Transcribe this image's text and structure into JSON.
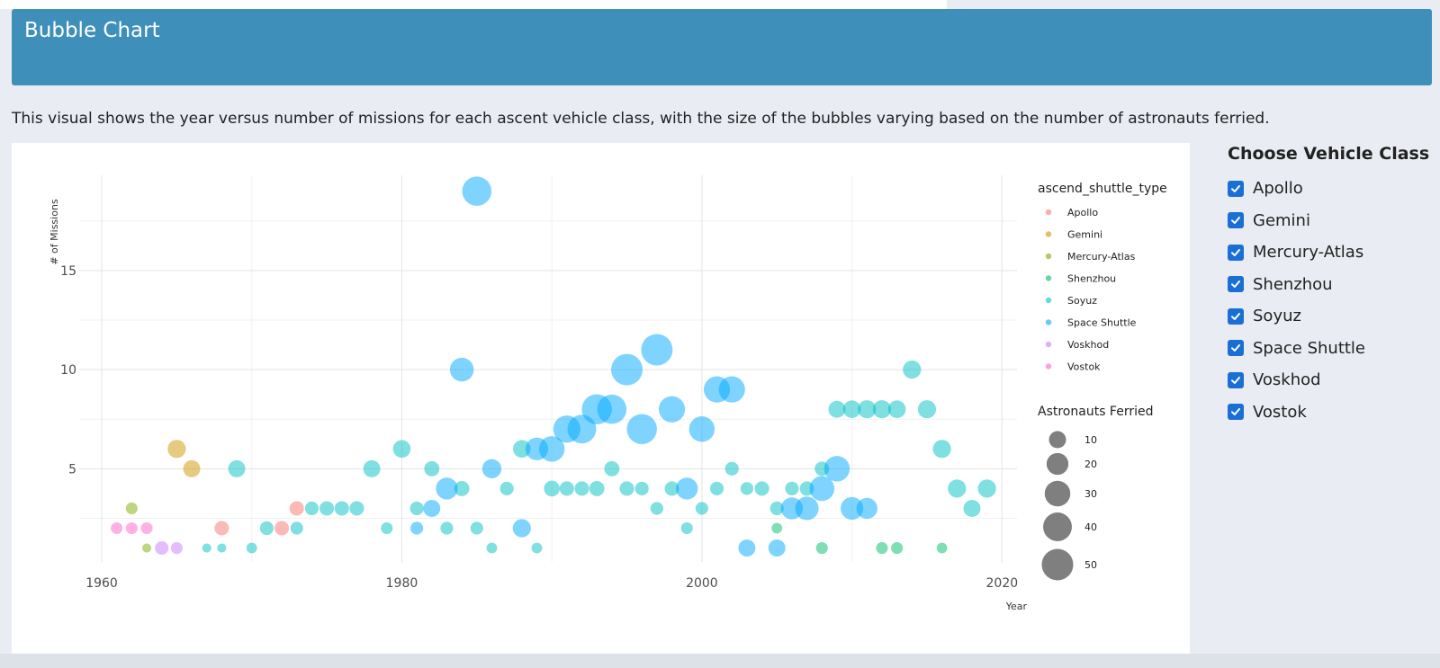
{
  "header": {
    "title": "Bubble Chart"
  },
  "description": "This visual shows the year versus number of missions for each ascent vehicle class, with the size of the bubbles varying based on the number of astronauts ferried.",
  "controls": {
    "title": "Choose Vehicle Class",
    "options": [
      {
        "label": "Apollo",
        "checked": true
      },
      {
        "label": "Gemini",
        "checked": true
      },
      {
        "label": "Mercury-Atlas",
        "checked": true
      },
      {
        "label": "Shenzhou",
        "checked": true
      },
      {
        "label": "Soyuz",
        "checked": true
      },
      {
        "label": "Space Shuttle",
        "checked": true
      },
      {
        "label": "Voskhod",
        "checked": true
      },
      {
        "label": "Vostok",
        "checked": true
      }
    ]
  },
  "chart_data": {
    "type": "scatter",
    "title": "",
    "xlabel": "Year",
    "ylabel": "# of Missions",
    "xlim": [
      1958.5,
      2021
    ],
    "ylim": [
      0.3,
      19.8
    ],
    "xticks": [
      1960,
      1980,
      2000,
      2020
    ],
    "yticks": [
      5,
      10,
      15
    ],
    "grid": true,
    "legend_color_title": "ascend_shuttle_type",
    "legend_size_title": "Astronauts Ferried",
    "size_legend": [
      10,
      20,
      30,
      40,
      50
    ],
    "series": [
      {
        "name": "Apollo",
        "color": "#f8766d",
        "points": [
          [
            1968,
            2,
            6
          ],
          [
            1972,
            2,
            6
          ],
          [
            1973,
            3,
            6
          ]
        ]
      },
      {
        "name": "Gemini",
        "color": "#cd9600",
        "points": [
          [
            1965,
            6,
            12
          ],
          [
            1966,
            5,
            10
          ]
        ]
      },
      {
        "name": "Mercury-Atlas",
        "color": "#7cae00",
        "points": [
          [
            1962,
            3,
            3
          ],
          [
            1963,
            1,
            1
          ]
        ]
      },
      {
        "name": "Shenzhou",
        "color": "#00be67",
        "points": [
          [
            2005,
            2,
            2
          ],
          [
            2008,
            1,
            3
          ],
          [
            2012,
            1,
            3
          ],
          [
            2013,
            1,
            3
          ],
          [
            2016,
            1,
            2
          ]
        ]
      },
      {
        "name": "Soyuz",
        "color": "#00bfc4",
        "points": [
          [
            1967,
            1,
            1
          ],
          [
            1968,
            1,
            1
          ],
          [
            1969,
            5,
            10
          ],
          [
            1970,
            1,
            2
          ],
          [
            1971,
            2,
            5
          ],
          [
            1973,
            2,
            4
          ],
          [
            1974,
            3,
            5
          ],
          [
            1975,
            3,
            6
          ],
          [
            1976,
            3,
            6
          ],
          [
            1977,
            3,
            6
          ],
          [
            1978,
            5,
            10
          ],
          [
            1979,
            2,
            3
          ],
          [
            1980,
            6,
            11
          ],
          [
            1981,
            3,
            5
          ],
          [
            1982,
            5,
            7
          ],
          [
            1983,
            2,
            4
          ],
          [
            1984,
            4,
            7
          ],
          [
            1985,
            2,
            4
          ],
          [
            1986,
            1,
            2
          ],
          [
            1987,
            4,
            5
          ],
          [
            1988,
            6,
            11
          ],
          [
            1989,
            1,
            2
          ],
          [
            1990,
            4,
            8
          ],
          [
            1991,
            4,
            6
          ],
          [
            1992,
            4,
            6
          ],
          [
            1993,
            4,
            7
          ],
          [
            1994,
            5,
            7
          ],
          [
            1995,
            4,
            6
          ],
          [
            1996,
            4,
            5
          ],
          [
            1997,
            3,
            4
          ],
          [
            1998,
            4,
            6
          ],
          [
            1999,
            2,
            3
          ],
          [
            2000,
            3,
            4
          ],
          [
            2001,
            4,
            5
          ],
          [
            2002,
            5,
            5
          ],
          [
            2003,
            4,
            4
          ],
          [
            2004,
            4,
            6
          ],
          [
            2005,
            3,
            5
          ],
          [
            2006,
            4,
            5
          ],
          [
            2007,
            4,
            6
          ],
          [
            2008,
            5,
            6
          ],
          [
            2009,
            8,
            10
          ],
          [
            2010,
            8,
            11
          ],
          [
            2011,
            8,
            12
          ],
          [
            2012,
            8,
            12
          ],
          [
            2013,
            8,
            11
          ],
          [
            2014,
            10,
            12
          ],
          [
            2015,
            8,
            12
          ],
          [
            2016,
            6,
            12
          ],
          [
            2017,
            4,
            12
          ],
          [
            2018,
            3,
            10
          ],
          [
            2019,
            4,
            12
          ]
        ]
      },
      {
        "name": "Space Shuttle",
        "color": "#00a9ff",
        "points": [
          [
            1981,
            2,
            4
          ],
          [
            1982,
            3,
            10
          ],
          [
            1983,
            4,
            20
          ],
          [
            1984,
            10,
            25
          ],
          [
            1985,
            19,
            42
          ],
          [
            1986,
            5,
            14
          ],
          [
            1988,
            2,
            12
          ],
          [
            1989,
            6,
            22
          ],
          [
            1990,
            6,
            30
          ],
          [
            1991,
            7,
            35
          ],
          [
            1992,
            7,
            40
          ],
          [
            1993,
            8,
            45
          ],
          [
            1994,
            8,
            42
          ],
          [
            1995,
            10,
            50
          ],
          [
            1996,
            7,
            45
          ],
          [
            1997,
            11,
            50
          ],
          [
            1998,
            8,
            32
          ],
          [
            1999,
            4,
            20
          ],
          [
            2000,
            7,
            30
          ],
          [
            2001,
            9,
            32
          ],
          [
            2002,
            9,
            32
          ],
          [
            2003,
            1,
            10
          ],
          [
            2005,
            1,
            10
          ],
          [
            2006,
            3,
            20
          ],
          [
            2007,
            3,
            24
          ],
          [
            2008,
            4,
            28
          ],
          [
            2009,
            5,
            30
          ],
          [
            2010,
            3,
            22
          ],
          [
            2011,
            3,
            18
          ]
        ]
      },
      {
        "name": "Voskhod",
        "color": "#c77cff",
        "points": [
          [
            1964,
            1,
            5
          ],
          [
            1965,
            1,
            3
          ]
        ]
      },
      {
        "name": "Vostok",
        "color": "#ff61cc",
        "points": [
          [
            1961,
            2,
            3
          ],
          [
            1962,
            2,
            3
          ],
          [
            1963,
            2,
            3
          ]
        ]
      }
    ]
  }
}
